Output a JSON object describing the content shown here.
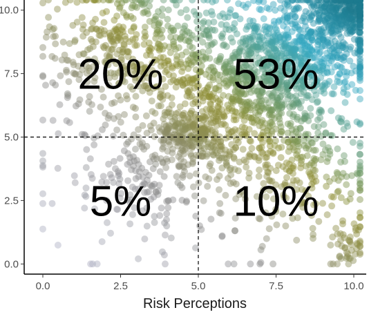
{
  "chart_data": {
    "type": "scatter",
    "title": "",
    "xlabel": "Risk Perceptions",
    "ylabel": "",
    "xlim": [
      -0.6,
      10.4
    ],
    "ylim": [
      -0.4,
      10.4
    ],
    "x_ticks": [
      "0.0",
      "2.5",
      "5.0",
      "7.5",
      "10.0"
    ],
    "y_ticks": [
      "0.0",
      "2.5",
      "5.0",
      "7.5",
      "10.0"
    ],
    "reference_lines": {
      "x": 5.0,
      "y": 5.0,
      "style": "dashed"
    },
    "grid": false,
    "legend": "none",
    "quadrant_labels": [
      {
        "label": "20%",
        "quadrant": "high-y low-x",
        "x": 2.5,
        "y": 7.5
      },
      {
        "label": "53%",
        "quadrant": "high-y high-x",
        "x": 7.5,
        "y": 7.5
      },
      {
        "label": "5%",
        "quadrant": "low-y low-x",
        "x": 2.5,
        "y": 2.5
      },
      {
        "label": "10%",
        "quadrant": "low-y high-x",
        "x": 7.5,
        "y": 2.5
      }
    ],
    "point_colors": {
      "low": "#b5b8cf",
      "mid_gray": "#8a8a8a",
      "mid_olive": "#8e8f34",
      "high_teal": "#35a9c3",
      "max": "#1d7a8e"
    },
    "marker_opacity": 0.45,
    "point_clusters": [
      {
        "cx": 9.8,
        "cy": 10.0,
        "sx": 0.5,
        "sy": 0.5,
        "n": 220
      },
      {
        "cx": 8.6,
        "cy": 8.6,
        "sx": 1.1,
        "sy": 1.0,
        "n": 520
      },
      {
        "cx": 6.8,
        "cy": 7.2,
        "sx": 1.3,
        "sy": 1.3,
        "n": 620
      },
      {
        "cx": 4.8,
        "cy": 5.1,
        "sx": 0.6,
        "sy": 0.55,
        "n": 230
      },
      {
        "cx": 3.0,
        "cy": 8.5,
        "sx": 1.4,
        "sy": 1.3,
        "n": 430
      },
      {
        "cx": 8.0,
        "cy": 4.0,
        "sx": 1.5,
        "sy": 1.3,
        "n": 300
      },
      {
        "cx": 3.3,
        "cy": 3.6,
        "sx": 1.6,
        "sy": 1.3,
        "n": 160
      },
      {
        "cx": 9.8,
        "cy": 0.6,
        "sx": 0.4,
        "sy": 0.5,
        "n": 45
      },
      {
        "cx": 5.0,
        "cy": 5.0,
        "sx": 3.2,
        "sy": 3.0,
        "n": 170
      }
    ]
  }
}
